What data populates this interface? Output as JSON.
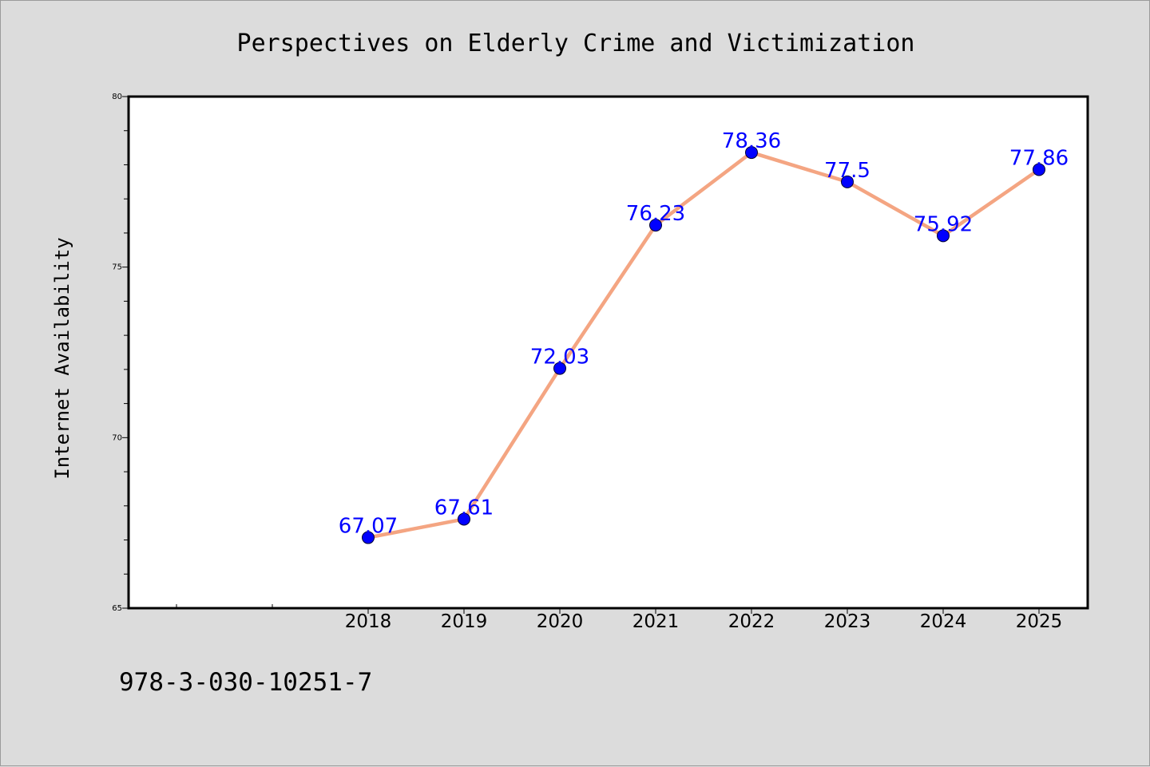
{
  "chart_data": {
    "type": "line",
    "title": "Perspectives on Elderly Crime and Victimization",
    "xlabel": "",
    "ylabel": "Internet Availability",
    "categories": [
      "2018",
      "2019",
      "2020",
      "2021",
      "2022",
      "2023",
      "2024",
      "2025"
    ],
    "series": [
      {
        "values": [
          67.07,
          67.61,
          72.03,
          76.23,
          78.36,
          77.5,
          75.92,
          77.86
        ]
      }
    ],
    "data_labels": [
      "67.07",
      "67.61",
      "72.03",
      "76.23",
      "78.36",
      "77.5",
      "75.92",
      "77.86"
    ],
    "ylim": [
      65,
      80
    ],
    "yticks": [
      "65",
      "70",
      "75",
      "80"
    ],
    "grid": false,
    "legend": "none",
    "colors": {
      "line": "#f4a582",
      "marker": "#0000ff",
      "label": "#0000ff",
      "plot_background": "#ffffff",
      "figure_background": "#dcdcdc"
    }
  },
  "footer": {
    "isbn": "978-3-030-10251-7"
  }
}
